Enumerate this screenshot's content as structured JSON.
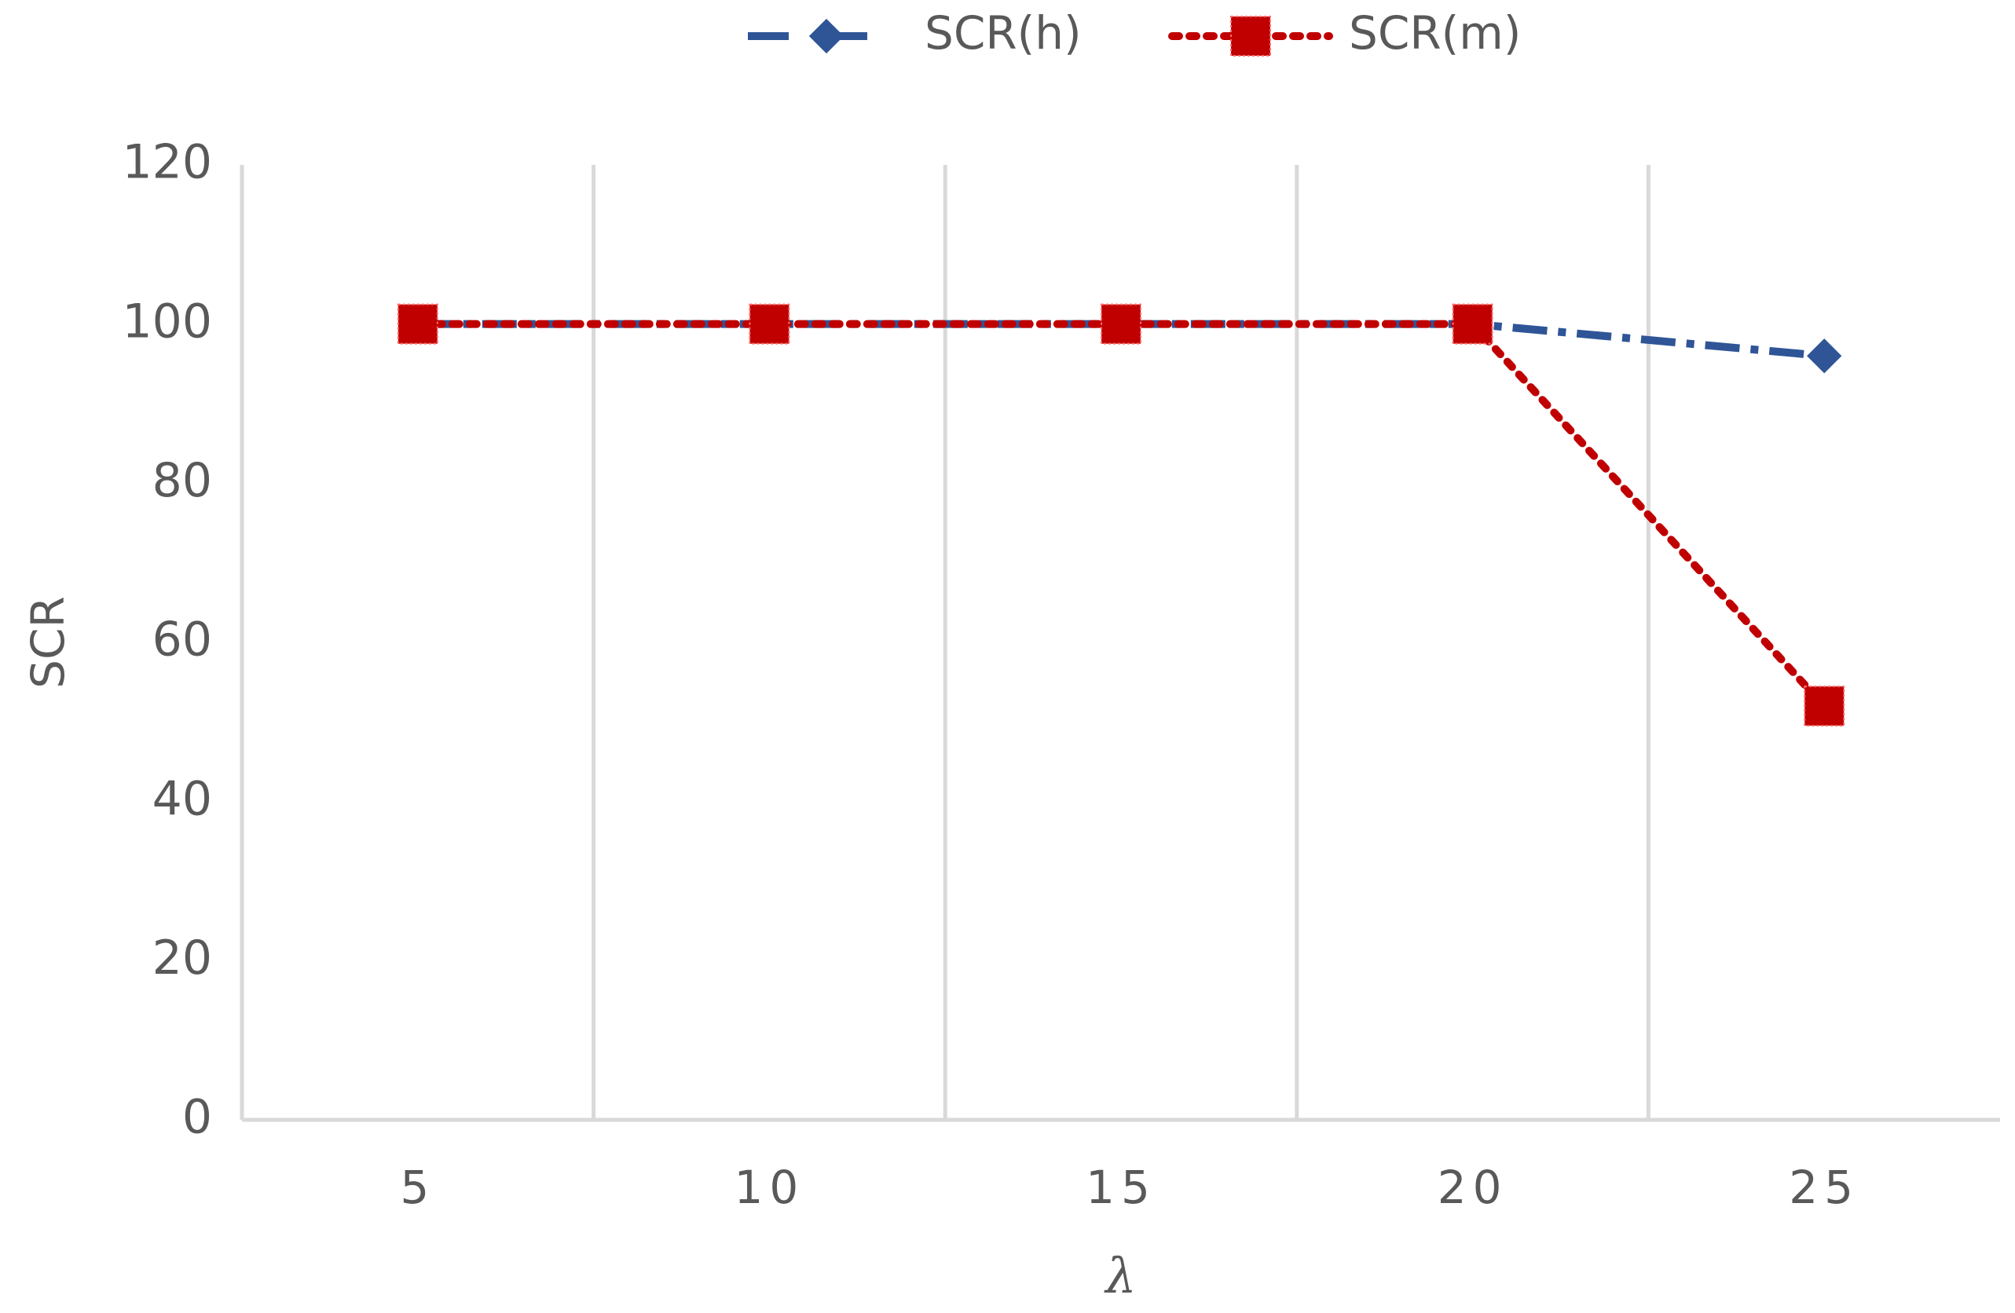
{
  "chart_data": {
    "type": "line",
    "categories": [
      "5",
      "10",
      "15",
      "20",
      "25"
    ],
    "series": [
      {
        "name": "SCR(h)",
        "color": "#2f5597",
        "line_style": "dashdot",
        "marker": "diamond",
        "values": [
          100,
          100,
          100,
          100,
          96
        ]
      },
      {
        "name": "SCR(m)",
        "color": "#c00000",
        "line_style": "dotted",
        "marker": "square",
        "values": [
          100,
          100,
          100,
          100,
          52
        ]
      }
    ],
    "ylim": [
      0,
      120
    ],
    "yticks": [
      0,
      20,
      40,
      60,
      80,
      100,
      120
    ],
    "xlabel": "λ",
    "ylabel": "SCR",
    "legend": "top",
    "grid": "x"
  }
}
